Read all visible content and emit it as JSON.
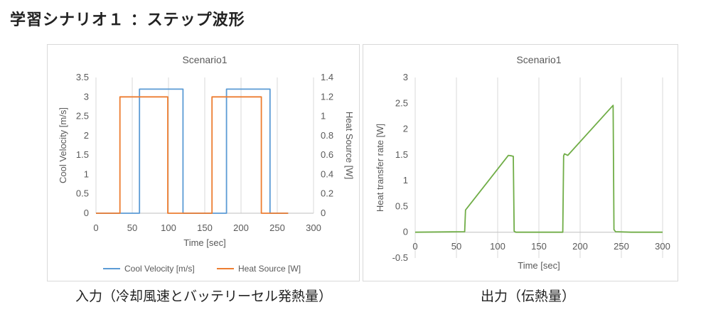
{
  "page": {
    "title": "学習シナリオ１ ：ステップ波形",
    "left_caption": "入力（冷却風速とバッテリーセル発熱量）",
    "right_caption": "出力（伝熱量）"
  },
  "chart_data": [
    {
      "type": "line",
      "title": "Scenario1",
      "xlabel": "Time [sec]",
      "ylabel": "Cool Velocity [m/s]",
      "y2label": "Heat Source [W]",
      "xlim": [
        0,
        300
      ],
      "ylim": [
        0,
        3.5
      ],
      "y2lim": [
        0,
        1.4
      ],
      "xticks": [
        0,
        50,
        100,
        150,
        200,
        250,
        300
      ],
      "yticks": [
        0,
        0.5,
        1,
        1.5,
        2,
        2.5,
        3,
        3.5
      ],
      "y2ticks": [
        0,
        0.2,
        0.4,
        0.6,
        0.8,
        1,
        1.2,
        1.4
      ],
      "y2tick_labels": [
        "0",
        "0.2",
        "0.4",
        "0.6",
        "0.8",
        "1",
        "1.2",
        "1.4"
      ],
      "grid": "vertical",
      "legend": "bottom",
      "series": [
        {
          "name": "Cool Velocity [m/s]",
          "axis": "left",
          "color": "#5b9bd5",
          "points": [
            [
              0,
              0
            ],
            [
              60,
              0
            ],
            [
              60,
              3.2
            ],
            [
              120,
              3.2
            ],
            [
              120,
              0
            ],
            [
              180,
              0
            ],
            [
              180,
              3.2
            ],
            [
              240,
              3.2
            ],
            [
              240,
              0
            ],
            [
              265,
              0
            ]
          ]
        },
        {
          "name": "Heat Source [W]",
          "axis": "right",
          "color": "#ed7d31",
          "points": [
            [
              0,
              0
            ],
            [
              33,
              0
            ],
            [
              33,
              1.2
            ],
            [
              99,
              1.2
            ],
            [
              99,
              0
            ],
            [
              160,
              0
            ],
            [
              160,
              1.2
            ],
            [
              228,
              1.2
            ],
            [
              228,
              0
            ],
            [
              265,
              0
            ]
          ]
        }
      ]
    },
    {
      "type": "line",
      "title": "Scenario1",
      "xlabel": "Time [sec]",
      "ylabel": "Heat transfer rate [W]",
      "xlim": [
        0,
        300
      ],
      "ylim": [
        -0.5,
        3
      ],
      "xticks": [
        0,
        50,
        100,
        150,
        200,
        250,
        300
      ],
      "yticks": [
        -0.5,
        0,
        0.5,
        1,
        1.5,
        2,
        2.5,
        3
      ],
      "grid": "vertical",
      "series": [
        {
          "name": "",
          "color": "#70ad47",
          "points": [
            [
              0,
              0
            ],
            [
              60,
              0.01
            ],
            [
              61,
              0.43
            ],
            [
              63,
              0.47
            ],
            [
              113,
              1.49
            ],
            [
              117,
              1.48
            ],
            [
              119,
              1.47
            ],
            [
              120,
              0.02
            ],
            [
              122,
              0
            ],
            [
              179,
              0
            ],
            [
              180,
              1.48
            ],
            [
              181,
              1.52
            ],
            [
              185,
              1.49
            ],
            [
              240,
              2.46
            ],
            [
              241,
              0.05
            ],
            [
              243,
              0.01
            ],
            [
              262,
              0
            ],
            [
              300,
              0
            ]
          ]
        }
      ]
    }
  ]
}
